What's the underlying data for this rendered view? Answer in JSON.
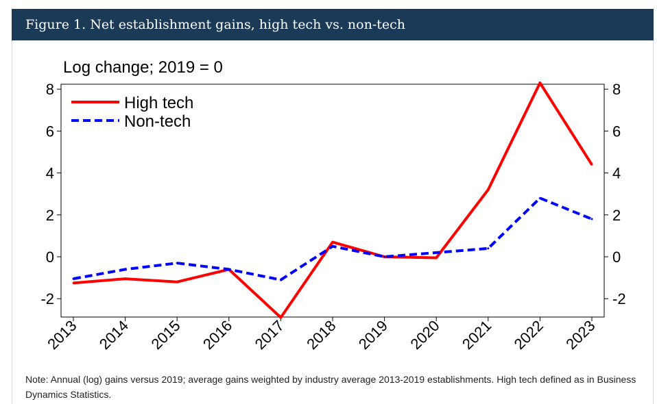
{
  "header": {
    "title": "Figure 1. Net establishment gains, high tech vs. non-tech"
  },
  "note": "Note: Annual (log) gains versus 2019; average gains weighted by industry average 2013-2019 establishments. High tech defined as in Business Dynamics Statistics.",
  "chart_data": {
    "type": "line",
    "ylabel": "Log change; 2019 = 0",
    "categories": [
      "2013",
      "2014",
      "2015",
      "2016",
      "2017",
      "2018",
      "2019",
      "2020",
      "2021",
      "2022",
      "2023"
    ],
    "yticks": [
      8,
      6,
      4,
      2,
      0,
      -2
    ],
    "ylim": [
      -2.9,
      8.3
    ],
    "grid": false,
    "legend_position": "top-left",
    "series": [
      {
        "name": "High tech",
        "color": "#ff0000",
        "style": "solid",
        "values": [
          -1.25,
          -1.05,
          -1.2,
          -0.6,
          -2.9,
          0.7,
          0.0,
          -0.05,
          3.2,
          8.3,
          4.4
        ]
      },
      {
        "name": "Non-tech",
        "color": "#0000ff",
        "style": "dashed",
        "values": [
          -1.05,
          -0.6,
          -0.3,
          -0.6,
          -1.1,
          0.5,
          0.0,
          0.2,
          0.4,
          2.8,
          1.8
        ]
      }
    ]
  }
}
